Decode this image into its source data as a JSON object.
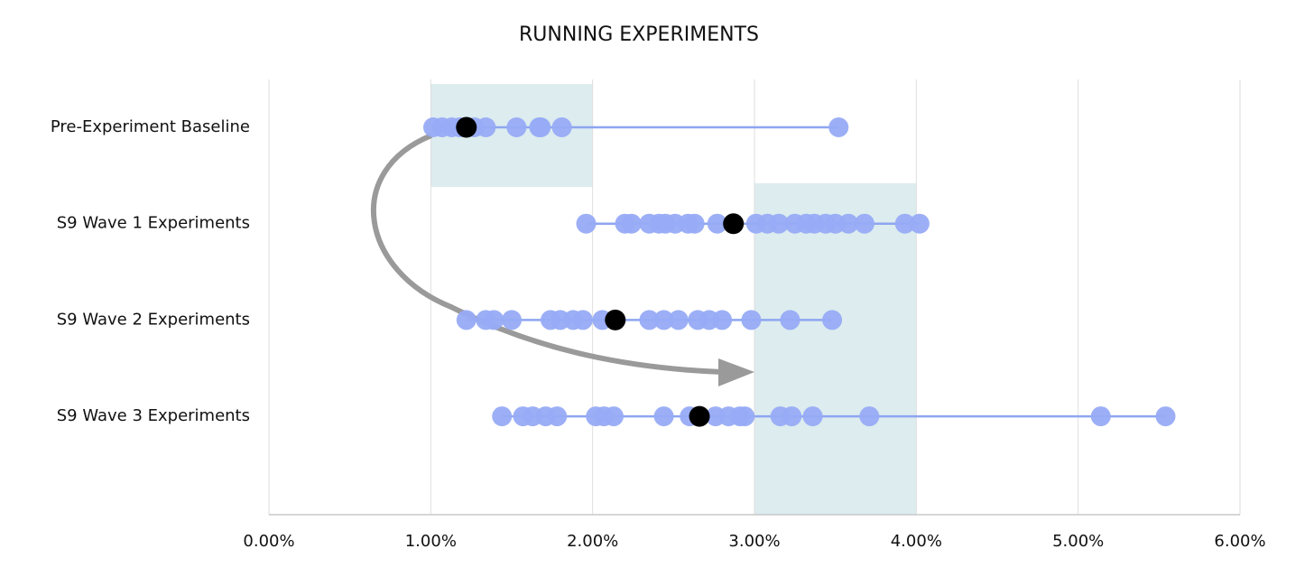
{
  "chart_data": {
    "type": "dot-strip",
    "title": "RUNNING EXPERIMENTS",
    "xlim": [
      0,
      6
    ],
    "xticks": [
      {
        "value": 0,
        "label": "0.00%"
      },
      {
        "value": 1,
        "label": "1.00%"
      },
      {
        "value": 2,
        "label": "2.00%"
      },
      {
        "value": 3,
        "label": "3.00%"
      },
      {
        "value": 4,
        "label": "4.00%"
      },
      {
        "value": 5,
        "label": "5.00%"
      },
      {
        "value": 6,
        "label": "6.00%"
      }
    ],
    "grid": true,
    "color": "#97abf6",
    "line_color": "#8ea5f0",
    "average_color": "#000000",
    "highlight_color": "#dcecef",
    "highlights": [
      {
        "xlim": [
          1,
          2
        ]
      },
      {
        "xlim": [
          3,
          4
        ]
      }
    ],
    "series": [
      {
        "name": "Pre-Experiment Baseline",
        "average": 1.22,
        "values": [
          1.015,
          1.07,
          1.13,
          1.18,
          1.27,
          1.34,
          1.53,
          1.67,
          1.68,
          1.81,
          3.52
        ]
      },
      {
        "name": "S9 Wave 1 Experiments",
        "average": 2.87,
        "values": [
          1.96,
          2.2,
          2.24,
          2.35,
          2.41,
          2.45,
          2.51,
          2.59,
          2.63,
          2.77,
          3.01,
          3.08,
          3.15,
          3.25,
          3.32,
          3.37,
          3.44,
          3.5,
          3.58,
          3.68,
          3.93,
          4.02
        ]
      },
      {
        "name": "S9 Wave 2 Experiments",
        "average": 2.14,
        "values": [
          1.22,
          1.34,
          1.39,
          1.5,
          1.74,
          1.8,
          1.88,
          1.94,
          2.06,
          2.35,
          2.44,
          2.53,
          2.65,
          2.72,
          2.8,
          2.98,
          3.22,
          3.48
        ]
      },
      {
        "name": "S9 Wave 3 Experiments",
        "average": 2.66,
        "values": [
          1.44,
          1.57,
          1.63,
          1.71,
          1.78,
          2.02,
          2.07,
          2.13,
          2.44,
          2.6,
          2.76,
          2.84,
          2.91,
          2.94,
          3.16,
          3.23,
          3.36,
          3.71,
          5.14,
          5.54
        ]
      }
    ]
  }
}
